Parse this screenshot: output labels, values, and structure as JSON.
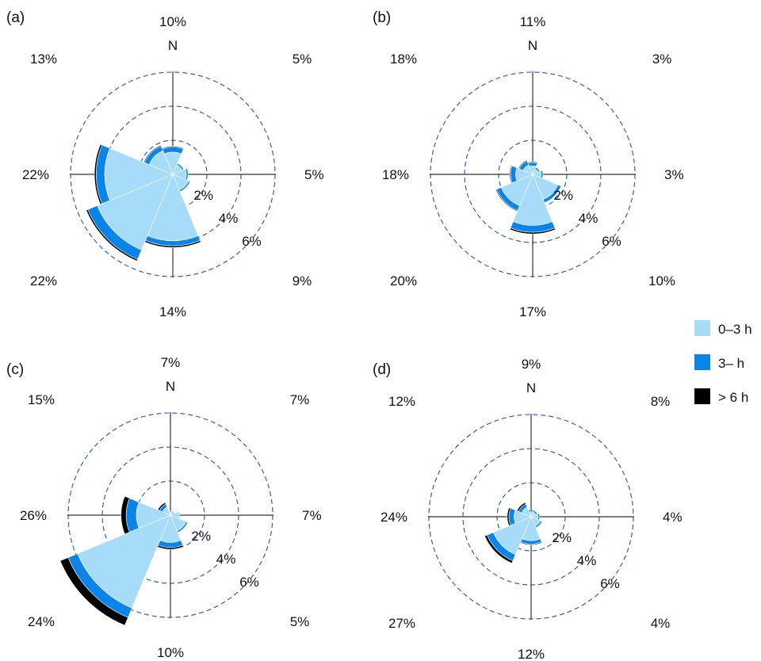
{
  "colors": {
    "c0_3h": "#a6dcfa",
    "c3h": "#0a84e8",
    "c6h": "#000000",
    "ring": "#2a4fb0",
    "axis": "#333333"
  },
  "legend": [
    {
      "label": "0–3 h",
      "color": "#a6dcfa"
    },
    {
      "label": "3– h",
      "color": "#0a84e8"
    },
    {
      "label": "> 6 h",
      "color": "#000000"
    }
  ],
  "chart_data": [
    {
      "type": "wind-rose",
      "panel": "(a)",
      "north_label": "N",
      "ring_labels": [
        "2%",
        "4%",
        "6%"
      ],
      "ring_values": [
        2,
        4,
        6
      ],
      "direction_labels": [
        "10%",
        "5%",
        "5%",
        "9%",
        "14%",
        "22%",
        "22%",
        "13%"
      ],
      "bins": [
        "0–3 h",
        "3– h",
        "> 6 h"
      ],
      "sectors": [
        {
          "dir": "N",
          "values": [
            1.3,
            0.3,
            0.05
          ]
        },
        {
          "dir": "NE",
          "values": [
            0.6,
            0.1,
            0.0
          ]
        },
        {
          "dir": "E",
          "values": [
            0.8,
            0.1,
            0.0
          ]
        },
        {
          "dir": "SE",
          "values": [
            1.0,
            0.1,
            0.0
          ]
        },
        {
          "dir": "S",
          "values": [
            3.9,
            0.3,
            0.1
          ]
        },
        {
          "dir": "SW",
          "values": [
            4.8,
            0.6,
            0.1
          ]
        },
        {
          "dir": "W",
          "values": [
            4.0,
            0.5,
            0.1
          ]
        },
        {
          "dir": "NW",
          "values": [
            1.5,
            0.3,
            0.05
          ]
        }
      ]
    },
    {
      "type": "wind-rose",
      "panel": "(b)",
      "north_label": "N",
      "ring_labels": [
        "2%",
        "4%",
        "6%"
      ],
      "ring_values": [
        2,
        4,
        6
      ],
      "direction_labels": [
        "11%",
        "3%",
        "3%",
        "10%",
        "17%",
        "20%",
        "18%",
        "18%"
      ],
      "bins": [
        "0–3 h",
        "3– h",
        "> 6 h"
      ],
      "sectors": [
        {
          "dir": "N",
          "values": [
            0.5,
            0.2,
            0.05
          ]
        },
        {
          "dir": "NE",
          "values": [
            0.35,
            0.1,
            0.0
          ]
        },
        {
          "dir": "E",
          "values": [
            0.5,
            0.1,
            0.0
          ]
        },
        {
          "dir": "SE",
          "values": [
            1.6,
            0.2,
            0.0
          ]
        },
        {
          "dir": "S",
          "values": [
            3.0,
            0.4,
            0.1
          ]
        },
        {
          "dir": "SW",
          "values": [
            2.0,
            0.3,
            0.05
          ]
        },
        {
          "dir": "W",
          "values": [
            1.0,
            0.3,
            0.05
          ]
        },
        {
          "dir": "NW",
          "values": [
            0.6,
            0.25,
            0.05
          ]
        }
      ]
    },
    {
      "type": "wind-rose",
      "panel": "(c)",
      "north_label": "N",
      "ring_labels": [
        "2%",
        "4%",
        "6%"
      ],
      "ring_values": [
        2,
        4,
        6
      ],
      "direction_labels": [
        "7%",
        "7%",
        "7%",
        "5%",
        "10%",
        "24%",
        "26%",
        "15%"
      ],
      "bins": [
        "0–3 h",
        "3– h",
        "> 6 h"
      ],
      "sectors": [
        {
          "dir": "N",
          "values": [
            0.2,
            0.05,
            0.0
          ]
        },
        {
          "dir": "NE",
          "values": [
            0.2,
            0.05,
            0.0
          ]
        },
        {
          "dir": "E",
          "values": [
            0.5,
            0.05,
            0.0
          ]
        },
        {
          "dir": "SE",
          "values": [
            1.0,
            0.1,
            0.0
          ]
        },
        {
          "dir": "S",
          "values": [
            1.6,
            0.3,
            0.1
          ]
        },
        {
          "dir": "SW",
          "values": [
            5.9,
            0.6,
            0.5
          ]
        },
        {
          "dir": "W",
          "values": [
            2.0,
            0.6,
            0.3
          ]
        },
        {
          "dir": "NW",
          "values": [
            0.5,
            0.2,
            0.1
          ]
        }
      ]
    },
    {
      "type": "wind-rose",
      "panel": "(d)",
      "north_label": "N",
      "ring_labels": [
        "2%",
        "4%",
        "6%"
      ],
      "ring_values": [
        2,
        4,
        6
      ],
      "direction_labels": [
        "9%",
        "8%",
        "4%",
        "4%",
        "12%",
        "27%",
        "24%",
        "12%"
      ],
      "bins": [
        "0–3 h",
        "3– h",
        "> 6 h"
      ],
      "sectors": [
        {
          "dir": "N",
          "values": [
            0.3,
            0.1,
            0.0
          ]
        },
        {
          "dir": "NE",
          "values": [
            0.3,
            0.1,
            0.0
          ]
        },
        {
          "dir": "E",
          "values": [
            0.4,
            0.1,
            0.0
          ]
        },
        {
          "dir": "SE",
          "values": [
            0.6,
            0.1,
            0.0
          ]
        },
        {
          "dir": "S",
          "values": [
            1.4,
            0.2,
            0.05
          ]
        },
        {
          "dir": "SW",
          "values": [
            2.4,
            0.4,
            0.15
          ]
        },
        {
          "dir": "W",
          "values": [
            1.0,
            0.3,
            0.1
          ]
        },
        {
          "dir": "NW",
          "values": [
            0.6,
            0.2,
            0.1
          ]
        }
      ]
    }
  ]
}
